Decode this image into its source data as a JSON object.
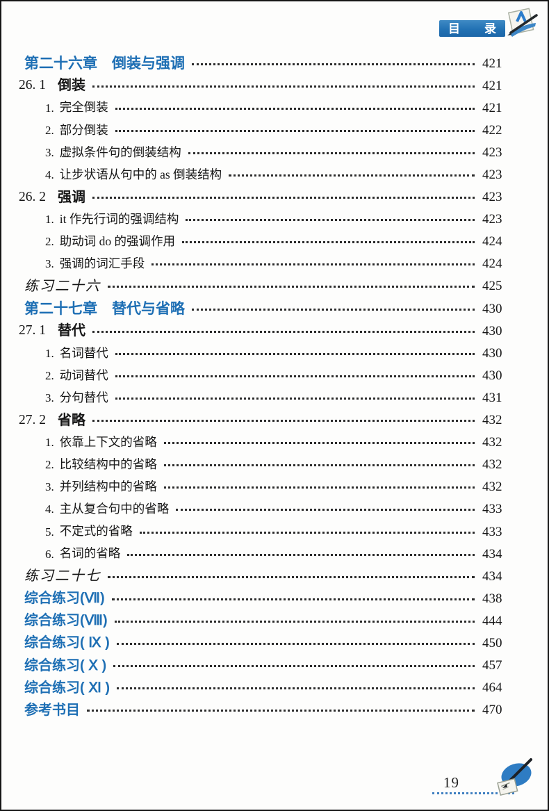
{
  "header": {
    "badge_left": "目",
    "badge_right": "录",
    "badge_color": "#2272b4",
    "icon": "pen-writing-on-paper-icon"
  },
  "accent_blue": "#1e6fb4",
  "toc": {
    "entries": [
      {
        "style": "chapter",
        "label": "第二十六章　倒装与强调",
        "page": "421"
      },
      {
        "style": "section",
        "num": "26. 1",
        "label": "倒装",
        "page": "421"
      },
      {
        "style": "item",
        "num": "1.",
        "label": "完全倒装",
        "page": "421"
      },
      {
        "style": "item",
        "num": "2.",
        "label": "部分倒装",
        "page": "422"
      },
      {
        "style": "item",
        "num": "3.",
        "label": "虚拟条件句的倒装结构",
        "page": "423"
      },
      {
        "style": "item",
        "num": "4.",
        "label": "让步状语从句中的 as 倒装结构",
        "page": "423"
      },
      {
        "style": "section",
        "num": "26. 2",
        "label": "强调",
        "page": "423"
      },
      {
        "style": "item",
        "num": "1.",
        "label": "it 作先行词的强调结构",
        "page": "423"
      },
      {
        "style": "item",
        "num": "2.",
        "label": "助动词 do 的强调作用",
        "page": "424"
      },
      {
        "style": "item",
        "num": "3.",
        "label": "强调的词汇手段",
        "page": "424"
      },
      {
        "style": "exercise",
        "label": "练习二十六",
        "page": "425"
      },
      {
        "style": "chapter",
        "label": "第二十七章　替代与省略",
        "page": "430"
      },
      {
        "style": "section",
        "num": "27. 1",
        "label": "替代",
        "page": "430"
      },
      {
        "style": "item",
        "num": "1.",
        "label": "名词替代",
        "page": "430"
      },
      {
        "style": "item",
        "num": "2.",
        "label": "动词替代",
        "page": "430"
      },
      {
        "style": "item",
        "num": "3.",
        "label": "分句替代",
        "page": "431"
      },
      {
        "style": "section",
        "num": "27. 2",
        "label": "省略",
        "page": "432"
      },
      {
        "style": "item",
        "num": "1.",
        "label": "依靠上下文的省略",
        "page": "432"
      },
      {
        "style": "item",
        "num": "2.",
        "label": "比较结构中的省略",
        "page": "432"
      },
      {
        "style": "item",
        "num": "3.",
        "label": "并列结构中的省略",
        "page": "432"
      },
      {
        "style": "item",
        "num": "4.",
        "label": "主从复合句中的省略",
        "page": "433"
      },
      {
        "style": "item",
        "num": "5.",
        "label": "不定式的省略",
        "page": "433"
      },
      {
        "style": "item",
        "num": "6.",
        "label": "名词的省略",
        "page": "434"
      },
      {
        "style": "exercise",
        "label": "练习二十七",
        "page": "434"
      },
      {
        "style": "composite",
        "label": "综合练习(Ⅶ)",
        "page": "438"
      },
      {
        "style": "composite",
        "label": "综合练习(Ⅷ)",
        "page": "444"
      },
      {
        "style": "composite",
        "label": "综合练习( Ⅸ )",
        "page": "450"
      },
      {
        "style": "composite",
        "label": "综合练习( Ⅹ )",
        "page": "457"
      },
      {
        "style": "composite",
        "label": "综合练习( Ⅺ )",
        "page": "464"
      },
      {
        "style": "composite",
        "label": "参考书目",
        "page": "470"
      }
    ]
  },
  "footer": {
    "page_number": "19",
    "icon": "pen-and-palette-icon"
  }
}
